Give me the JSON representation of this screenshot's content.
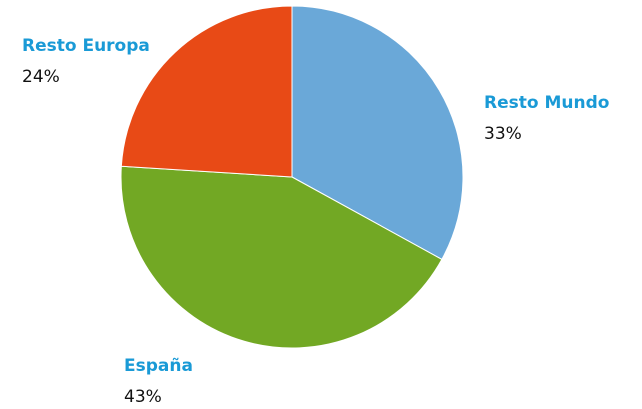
{
  "chart_data": {
    "type": "pie",
    "categories": [
      "Resto Mundo",
      "España",
      "Resto Europa"
    ],
    "values": [
      33,
      43,
      24
    ],
    "value_labels": [
      "33%",
      "43%",
      "24%"
    ],
    "colors": [
      "#6aa8d8",
      "#72a824",
      "#e84a16"
    ]
  }
}
